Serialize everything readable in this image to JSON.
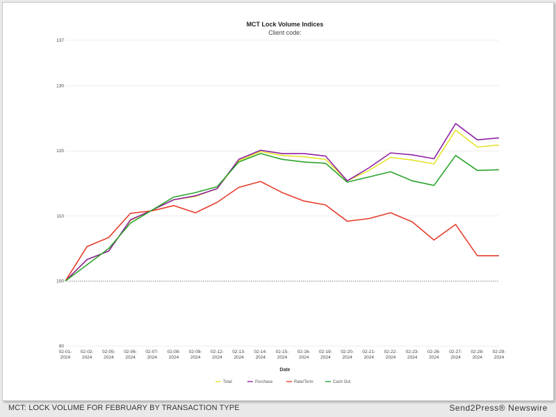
{
  "caption": {
    "left": "MCT: LOCK VOLUME FOR FEBRUARY BY TRANSACTION TYPE",
    "right": "Send2Press® Newswire"
  },
  "chart_data": {
    "type": "line",
    "title": "MCT Lock Volume Indices",
    "subtitle": "Client code:",
    "xlabel": "Date",
    "ylabel": "",
    "ylim": [
      90,
      137
    ],
    "yticks": [
      90,
      100,
      110,
      120,
      130,
      137
    ],
    "reference_line": 100,
    "grid": true,
    "legend_position": "bottom",
    "categories": [
      "02-01-2024",
      "02-02-2024",
      "02-05-2024",
      "02-06-2024",
      "02-07-2024",
      "02-08-2024",
      "02-09-2024",
      "02-12-2024",
      "02-13-2024",
      "02-14-2024",
      "02-15-2024",
      "02-16-2024",
      "02-19-2024",
      "02-20-2024",
      "02-21-2024",
      "02-22-2024",
      "02-23-2024",
      "02-26-2024",
      "02-27-2024",
      "02-28-2024",
      "02-29-2024"
    ],
    "tick_labels": [
      [
        "02-01-",
        "2024"
      ],
      [
        "02-02-",
        "2024"
      ],
      [
        "02-05-",
        "2024"
      ],
      [
        "02-06-",
        "2024"
      ],
      [
        "02-07-",
        "2024"
      ],
      [
        "02-08-",
        "2024"
      ],
      [
        "02-09-",
        "2024"
      ],
      [
        "02-12-",
        "2024"
      ],
      [
        "02-13-",
        "2024"
      ],
      [
        "02-14-",
        "2024"
      ],
      [
        "02-15-",
        "2024"
      ],
      [
        "02-16-",
        "2024"
      ],
      [
        "02-19-",
        "2024"
      ],
      [
        "02-20-",
        "2024"
      ],
      [
        "02-21-",
        "2024"
      ],
      [
        "02-22-",
        "2024"
      ],
      [
        "02-23-",
        "2024"
      ],
      [
        "02-26-",
        "2024"
      ],
      [
        "02-27-",
        "2024"
      ],
      [
        "02-28-",
        "2024"
      ],
      [
        "02-29-",
        "2024"
      ]
    ],
    "series": [
      {
        "name": "Total",
        "color": "#e3e32a",
        "values": [
          100,
          103.3,
          104.6,
          109.3,
          110.9,
          112.5,
          113.0,
          114.2,
          118.5,
          119.9,
          119.3,
          119.1,
          118.7,
          115.4,
          117.0,
          119.0,
          118.6,
          118.0,
          123.2,
          120.6,
          120.9
        ]
      },
      {
        "name": "Purchase",
        "color": "#8e1fa3",
        "values": [
          100,
          103.3,
          104.6,
          109.4,
          110.9,
          112.5,
          113.1,
          114.2,
          118.7,
          120.1,
          119.6,
          119.6,
          119.2,
          115.4,
          117.4,
          119.7,
          119.4,
          118.8,
          124.2,
          121.7,
          122.0
        ]
      },
      {
        "name": "Rate/Term",
        "color": "#e53b2a",
        "values": [
          100,
          105.3,
          106.7,
          110.4,
          110.8,
          111.6,
          110.5,
          112.1,
          114.4,
          115.3,
          113.6,
          112.3,
          111.7,
          109.2,
          109.6,
          110.5,
          109.1,
          106.3,
          108.7,
          103.9,
          103.9
        ]
      },
      {
        "name": "Cash Out",
        "color": "#2aa32a",
        "values": [
          100,
          102.5,
          105.0,
          108.9,
          110.9,
          112.9,
          113.6,
          114.5,
          118.3,
          119.6,
          118.7,
          118.3,
          118.1,
          115.2,
          116.0,
          116.8,
          115.4,
          114.7,
          119.3,
          117.0,
          117.1
        ]
      }
    ]
  }
}
